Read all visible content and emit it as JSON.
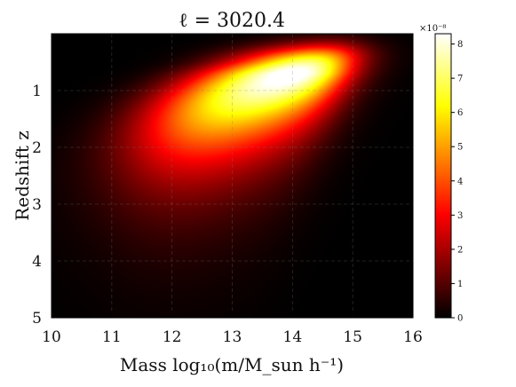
{
  "chart_data": {
    "type": "heatmap",
    "title": "ℓ = 3020.4",
    "xlabel": "Mass log₁₀(m/M_sun h⁻¹)",
    "ylabel": "Redshift z",
    "xlim": [
      10,
      16
    ],
    "ylim": [
      0,
      5
    ],
    "y_inverted": true,
    "x_ticks": [
      "10",
      "11",
      "12",
      "13",
      "14",
      "15",
      "16"
    ],
    "y_ticks": [
      "1",
      "2",
      "3",
      "4",
      "5"
    ],
    "grid": true,
    "colormap": "hot",
    "colorbar": {
      "min": 0,
      "max": 8.3e-08,
      "scale_label": "×10⁻⁸",
      "ticks": [
        "0",
        "1",
        "2",
        "3",
        "4",
        "5",
        "6",
        "7",
        "8"
      ]
    },
    "peak": {
      "log_mass": 14.3,
      "z": 0.75,
      "value": 8.2e-08
    }
  }
}
